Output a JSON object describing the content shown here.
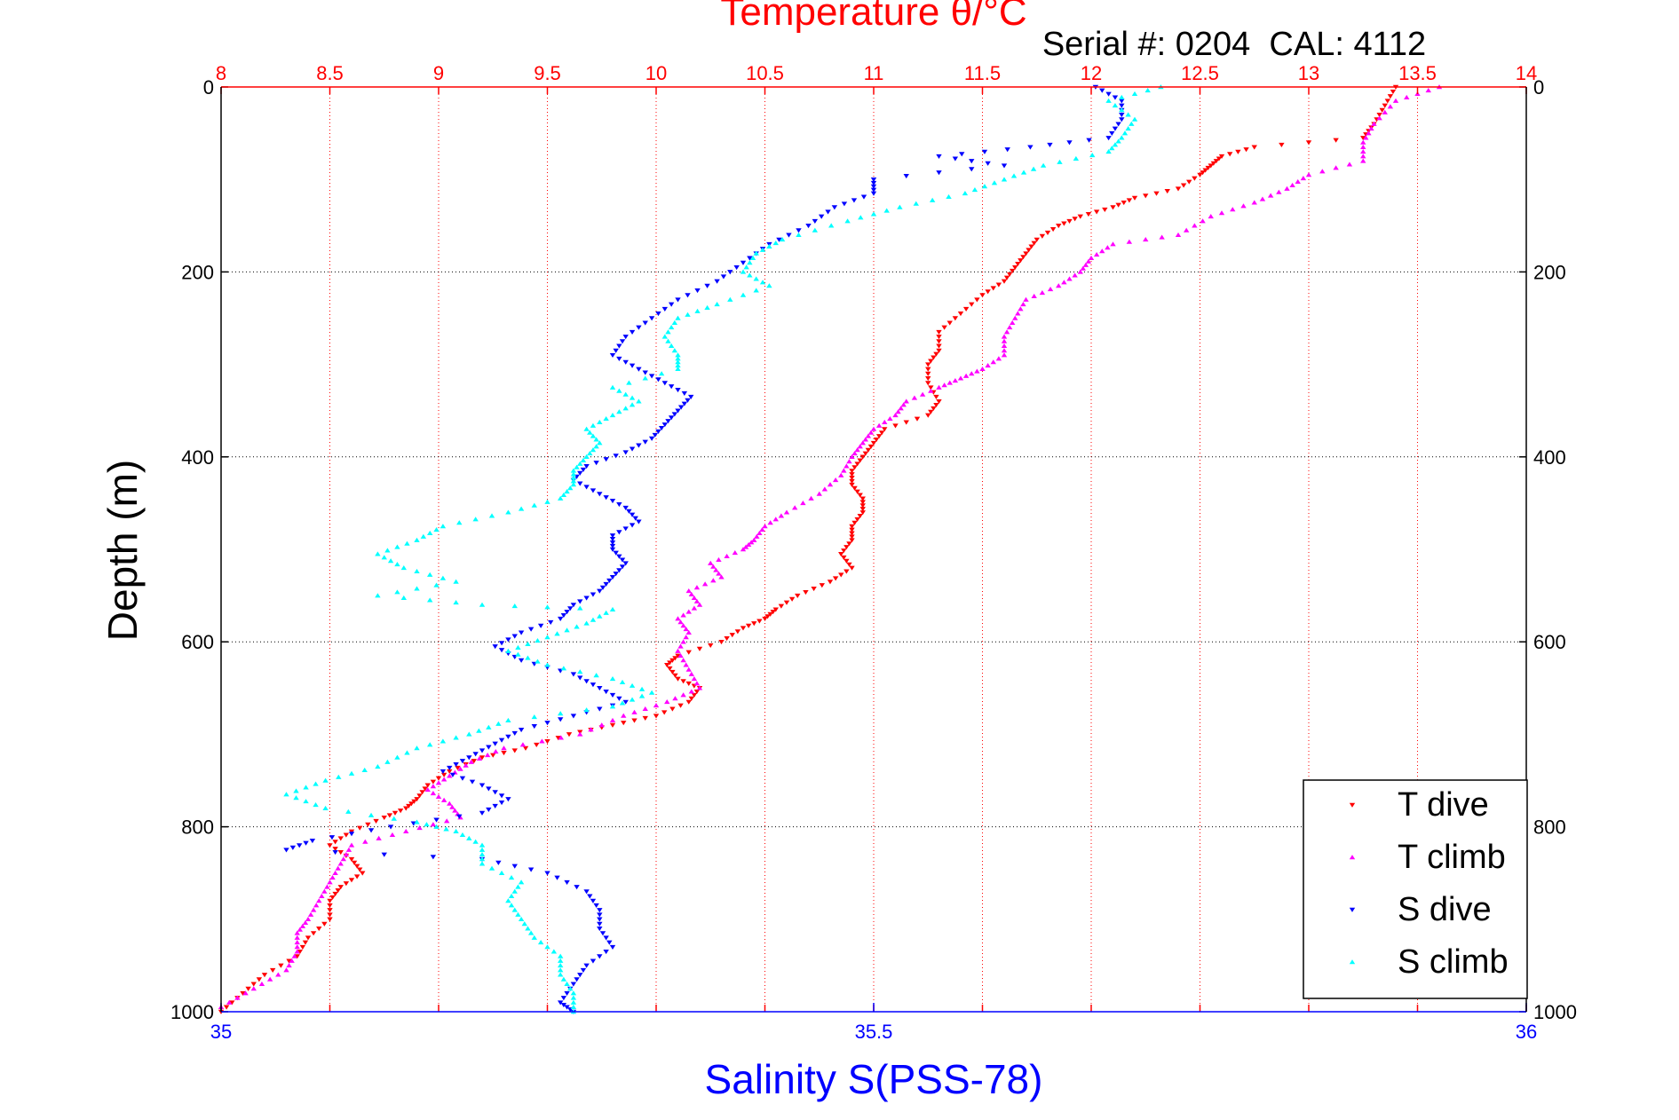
{
  "chart_data": {
    "type": "scatter",
    "title": "Temperature θ/°C",
    "subtitle": "Serial #: 0204  CAL: 4112",
    "xlabel": "Salinity S(PSS-78)",
    "ylabel": "Depth (m)",
    "top_axis": {
      "label": "Temperature θ/°C",
      "range": [
        8,
        14
      ],
      "ticks": [
        "8",
        "8.5",
        "9",
        "9.5",
        "10",
        "10.5",
        "11",
        "11.5",
        "12",
        "12.5",
        "13",
        "13.5",
        "14"
      ],
      "color": "#ff0000"
    },
    "bottom_axis": {
      "label": "Salinity S(PSS-78)",
      "range": [
        35,
        36
      ],
      "ticks": [
        "35",
        "35.5",
        "36"
      ],
      "color": "#0000ff"
    },
    "depth_axis": {
      "range": [
        0,
        1000
      ],
      "reversed": true,
      "ticks": [
        "0",
        "200",
        "400",
        "600",
        "800",
        "1000"
      ]
    },
    "grid": true,
    "legend_position": "bottom-right",
    "series": [
      {
        "name": "T dive",
        "axis": "temperature",
        "color": "#ff0000",
        "marker": "triangle-down",
        "points": [
          [
            13.4,
            0
          ],
          [
            13.35,
            20
          ],
          [
            13.3,
            40
          ],
          [
            13.25,
            55
          ],
          [
            12.75,
            65
          ],
          [
            12.6,
            75
          ],
          [
            12.55,
            85
          ],
          [
            12.5,
            95
          ],
          [
            12.4,
            110
          ],
          [
            12.2,
            120
          ],
          [
            12.1,
            130
          ],
          [
            11.95,
            140
          ],
          [
            11.85,
            150
          ],
          [
            11.75,
            165
          ],
          [
            11.7,
            180
          ],
          [
            11.65,
            195
          ],
          [
            11.6,
            210
          ],
          [
            11.5,
            225
          ],
          [
            11.4,
            245
          ],
          [
            11.3,
            265
          ],
          [
            11.3,
            285
          ],
          [
            11.25,
            300
          ],
          [
            11.25,
            320
          ],
          [
            11.3,
            340
          ],
          [
            11.25,
            355
          ],
          [
            11.05,
            370
          ],
          [
            11.0,
            385
          ],
          [
            10.95,
            400
          ],
          [
            10.9,
            415
          ],
          [
            10.9,
            430
          ],
          [
            10.95,
            445
          ],
          [
            10.95,
            460
          ],
          [
            10.9,
            475
          ],
          [
            10.9,
            490
          ],
          [
            10.85,
            505
          ],
          [
            10.9,
            520
          ],
          [
            10.8,
            535
          ],
          [
            10.65,
            550
          ],
          [
            10.55,
            565
          ],
          [
            10.5,
            575
          ],
          [
            10.4,
            585
          ],
          [
            10.3,
            600
          ],
          [
            10.1,
            615
          ],
          [
            10.05,
            625
          ],
          [
            10.1,
            640
          ],
          [
            10.2,
            650
          ],
          [
            10.15,
            665
          ],
          [
            10.0,
            680
          ],
          [
            9.8,
            690
          ],
          [
            9.6,
            700
          ],
          [
            9.4,
            715
          ],
          [
            9.2,
            725
          ],
          [
            9.05,
            740
          ],
          [
            8.95,
            755
          ],
          [
            8.9,
            770
          ],
          [
            8.85,
            780
          ],
          [
            8.75,
            790
          ],
          [
            8.6,
            805
          ],
          [
            8.5,
            820
          ],
          [
            8.6,
            835
          ],
          [
            8.65,
            850
          ],
          [
            8.55,
            865
          ],
          [
            8.5,
            880
          ],
          [
            8.5,
            900
          ],
          [
            8.4,
            920
          ],
          [
            8.35,
            940
          ],
          [
            8.2,
            960
          ],
          [
            8.1,
            980
          ],
          [
            8.0,
            1000
          ]
        ]
      },
      {
        "name": "T climb",
        "axis": "temperature",
        "color": "#ff00ff",
        "marker": "triangle-up",
        "points": [
          [
            13.6,
            0
          ],
          [
            13.4,
            15
          ],
          [
            13.3,
            40
          ],
          [
            13.25,
            60
          ],
          [
            13.25,
            80
          ],
          [
            13.0,
            95
          ],
          [
            12.9,
            110
          ],
          [
            12.75,
            125
          ],
          [
            12.55,
            140
          ],
          [
            12.4,
            160
          ],
          [
            12.1,
            170
          ],
          [
            12.0,
            185
          ],
          [
            11.95,
            200
          ],
          [
            11.85,
            215
          ],
          [
            11.7,
            230
          ],
          [
            11.65,
            250
          ],
          [
            11.6,
            270
          ],
          [
            11.6,
            290
          ],
          [
            11.5,
            305
          ],
          [
            11.4,
            315
          ],
          [
            11.3,
            325
          ],
          [
            11.15,
            340
          ],
          [
            11.1,
            355
          ],
          [
            11.0,
            370
          ],
          [
            10.95,
            385
          ],
          [
            10.9,
            400
          ],
          [
            10.85,
            420
          ],
          [
            10.75,
            440
          ],
          [
            10.6,
            460
          ],
          [
            10.5,
            475
          ],
          [
            10.45,
            490
          ],
          [
            10.4,
            500
          ],
          [
            10.25,
            515
          ],
          [
            10.3,
            530
          ],
          [
            10.15,
            545
          ],
          [
            10.2,
            560
          ],
          [
            10.1,
            575
          ],
          [
            10.15,
            590
          ],
          [
            10.1,
            610
          ],
          [
            10.15,
            630
          ],
          [
            10.2,
            650
          ],
          [
            10.05,
            665
          ],
          [
            9.85,
            680
          ],
          [
            9.65,
            700
          ],
          [
            9.3,
            715
          ],
          [
            9.15,
            730
          ],
          [
            9.05,
            745
          ],
          [
            8.95,
            760
          ],
          [
            9.05,
            775
          ],
          [
            9.1,
            790
          ],
          [
            8.85,
            805
          ],
          [
            8.6,
            820
          ],
          [
            8.55,
            840
          ],
          [
            8.5,
            860
          ],
          [
            8.45,
            880
          ],
          [
            8.4,
            900
          ],
          [
            8.35,
            915
          ],
          [
            8.35,
            935
          ],
          [
            8.3,
            955
          ],
          [
            8.15,
            975
          ],
          [
            8.0,
            995
          ]
        ]
      },
      {
        "name": "S dive",
        "axis": "salinity",
        "color": "#0000ff",
        "marker": "triangle-down",
        "points": [
          [
            35.67,
            0
          ],
          [
            35.69,
            15
          ],
          [
            35.69,
            35
          ],
          [
            35.68,
            55
          ],
          [
            35.62,
            65
          ],
          [
            35.55,
            75
          ],
          [
            35.6,
            85
          ],
          [
            35.5,
            100
          ],
          [
            35.5,
            115
          ],
          [
            35.47,
            130
          ],
          [
            35.45,
            150
          ],
          [
            35.42,
            170
          ],
          [
            35.4,
            190
          ],
          [
            35.38,
            210
          ],
          [
            35.35,
            230
          ],
          [
            35.33,
            250
          ],
          [
            35.31,
            270
          ],
          [
            35.3,
            290
          ],
          [
            35.32,
            305
          ],
          [
            35.34,
            320
          ],
          [
            35.36,
            335
          ],
          [
            35.35,
            350
          ],
          [
            35.34,
            365
          ],
          [
            35.33,
            380
          ],
          [
            35.31,
            395
          ],
          [
            35.28,
            410
          ],
          [
            35.27,
            425
          ],
          [
            35.29,
            440
          ],
          [
            35.31,
            455
          ],
          [
            35.32,
            470
          ],
          [
            35.3,
            485
          ],
          [
            35.3,
            500
          ],
          [
            35.31,
            515
          ],
          [
            35.3,
            530
          ],
          [
            35.29,
            545
          ],
          [
            35.27,
            560
          ],
          [
            35.26,
            575
          ],
          [
            35.23,
            590
          ],
          [
            35.21,
            605
          ],
          [
            35.23,
            620
          ],
          [
            35.27,
            635
          ],
          [
            35.29,
            650
          ],
          [
            35.31,
            665
          ],
          [
            35.27,
            680
          ],
          [
            35.23,
            695
          ],
          [
            35.21,
            710
          ],
          [
            35.19,
            725
          ],
          [
            35.17,
            740
          ],
          [
            35.2,
            755
          ],
          [
            35.22,
            770
          ],
          [
            35.2,
            785
          ],
          [
            35.13,
            800
          ],
          [
            35.07,
            815
          ],
          [
            35.05,
            825
          ],
          [
            35.2,
            835
          ],
          [
            35.25,
            850
          ],
          [
            35.28,
            870
          ],
          [
            35.29,
            890
          ],
          [
            35.29,
            910
          ],
          [
            35.3,
            930
          ],
          [
            35.28,
            950
          ],
          [
            35.27,
            970
          ],
          [
            35.26,
            990
          ],
          [
            35.27,
            1000
          ]
        ]
      },
      {
        "name": "S climb",
        "axis": "salinity",
        "color": "#00ffff",
        "marker": "triangle-up",
        "points": [
          [
            35.72,
            0
          ],
          [
            35.68,
            15
          ],
          [
            35.7,
            35
          ],
          [
            35.69,
            55
          ],
          [
            35.68,
            70
          ],
          [
            35.63,
            85
          ],
          [
            35.6,
            100
          ],
          [
            35.57,
            115
          ],
          [
            35.52,
            130
          ],
          [
            35.48,
            145
          ],
          [
            35.43,
            165
          ],
          [
            35.41,
            180
          ],
          [
            35.4,
            200
          ],
          [
            35.42,
            215
          ],
          [
            35.38,
            235
          ],
          [
            35.35,
            250
          ],
          [
            35.34,
            270
          ],
          [
            35.35,
            290
          ],
          [
            35.35,
            305
          ],
          [
            35.3,
            325
          ],
          [
            35.32,
            340
          ],
          [
            35.3,
            355
          ],
          [
            35.28,
            370
          ],
          [
            35.29,
            385
          ],
          [
            35.28,
            400
          ],
          [
            35.27,
            415
          ],
          [
            35.27,
            430
          ],
          [
            35.26,
            445
          ],
          [
            35.22,
            460
          ],
          [
            35.17,
            475
          ],
          [
            35.15,
            490
          ],
          [
            35.12,
            505
          ],
          [
            35.14,
            520
          ],
          [
            35.18,
            535
          ],
          [
            35.12,
            550
          ],
          [
            35.2,
            560
          ],
          [
            35.3,
            565
          ],
          [
            35.28,
            580
          ],
          [
            35.25,
            595
          ],
          [
            35.22,
            610
          ],
          [
            35.25,
            625
          ],
          [
            35.3,
            640
          ],
          [
            35.33,
            655
          ],
          [
            35.3,
            670
          ],
          [
            35.22,
            685
          ],
          [
            35.19,
            700
          ],
          [
            35.15,
            715
          ],
          [
            35.12,
            735
          ],
          [
            35.08,
            750
          ],
          [
            35.05,
            765
          ],
          [
            35.08,
            780
          ],
          [
            35.15,
            795
          ],
          [
            35.18,
            805
          ],
          [
            35.2,
            820
          ],
          [
            35.2,
            840
          ],
          [
            35.23,
            860
          ],
          [
            35.22,
            880
          ],
          [
            35.23,
            900
          ],
          [
            35.24,
            920
          ],
          [
            35.26,
            940
          ],
          [
            35.26,
            960
          ],
          [
            35.27,
            980
          ],
          [
            35.27,
            1000
          ]
        ]
      }
    ]
  }
}
